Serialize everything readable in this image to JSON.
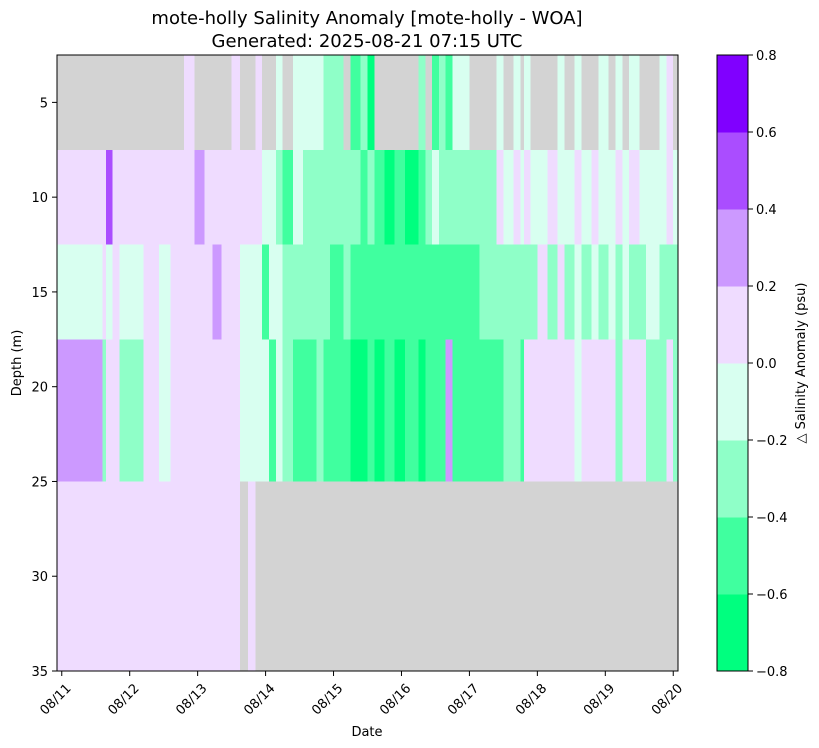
{
  "chart_data": {
    "type": "heatmap",
    "title_line1": "mote-holly Salinity Anomaly [mote-holly - WOA]",
    "title_line2": "Generated: 2025-08-21 07:15 UTC",
    "xlabel": "Date",
    "ylabel": "Depth (m)",
    "colorbar_label": "△ Salinity Anomaly (psu)",
    "x_tick_labels": [
      "08/11",
      "08/12",
      "08/13",
      "08/14",
      "08/15",
      "08/16",
      "08/17",
      "08/18",
      "08/19",
      "08/20"
    ],
    "x_range_days": [
      -0.07,
      9.07
    ],
    "y_ticks": [
      5,
      10,
      15,
      20,
      25,
      30,
      35
    ],
    "y_tick_labels": [
      "5",
      "10",
      "15",
      "20",
      "25",
      "30",
      "35"
    ],
    "ylim": [
      35,
      2.5
    ],
    "depth_bins": [
      [
        2.5,
        7.5
      ],
      [
        7.5,
        12.5
      ],
      [
        12.5,
        17.5
      ],
      [
        17.5,
        25
      ],
      [
        25,
        35
      ]
    ],
    "levels": [
      -0.8,
      -0.6,
      -0.4,
      -0.2,
      0.0,
      0.2,
      0.4,
      0.6,
      0.8
    ],
    "level_labels": [
      "−0.8",
      "−0.6",
      "−0.4",
      "−0.2",
      "0.0",
      "0.2",
      "0.4",
      "0.6",
      "0.8"
    ],
    "level_colors": [
      "#00ff7f",
      "#40ff9f",
      "#8fffc8",
      "#d8fff0",
      "#efdcff",
      "#cc99ff",
      "#aa4dff",
      "#8000ff"
    ],
    "nan_color": "#d3d3d3",
    "columns": [
      {
        "x0": -0.07,
        "x1": 0.6,
        "v": [
          null,
          0.1,
          -0.1,
          0.3,
          0.1
        ]
      },
      {
        "x0": 0.6,
        "x1": 0.65,
        "v": [
          null,
          0.1,
          0.1,
          -0.3,
          0.1
        ]
      },
      {
        "x0": 0.65,
        "x1": 0.75,
        "v": [
          null,
          0.5,
          -0.1,
          0.1,
          0.1
        ]
      },
      {
        "x0": 0.75,
        "x1": 0.85,
        "v": [
          null,
          0.1,
          0.1,
          0.1,
          0.1
        ]
      },
      {
        "x0": 0.85,
        "x1": 1.0,
        "v": [
          null,
          0.1,
          -0.1,
          -0.3,
          0.1
        ]
      },
      {
        "x0": 1.0,
        "x1": 1.2,
        "v": [
          null,
          0.1,
          -0.1,
          -0.3,
          0.1
        ]
      },
      {
        "x0": 1.2,
        "x1": 1.43,
        "v": [
          null,
          0.1,
          0.1,
          0.1,
          0.1
        ]
      },
      {
        "x0": 1.43,
        "x1": 1.6,
        "v": [
          null,
          0.1,
          -0.1,
          -0.1,
          0.1
        ]
      },
      {
        "x0": 1.6,
        "x1": 1.8,
        "v": [
          null,
          0.1,
          0.1,
          0.1,
          0.1
        ]
      },
      {
        "x0": 1.8,
        "x1": 1.95,
        "v": [
          0.1,
          0.1,
          0.1,
          0.1,
          0.1
        ]
      },
      {
        "x0": 1.95,
        "x1": 2.1,
        "v": [
          null,
          0.3,
          0.1,
          0.1,
          0.1
        ]
      },
      {
        "x0": 2.1,
        "x1": 2.22,
        "v": [
          null,
          0.1,
          0.1,
          0.1,
          0.1
        ]
      },
      {
        "x0": 2.22,
        "x1": 2.35,
        "v": [
          null,
          0.1,
          0.3,
          0.1,
          0.1
        ]
      },
      {
        "x0": 2.35,
        "x1": 2.5,
        "v": [
          null,
          0.1,
          0.1,
          0.1,
          0.1
        ]
      },
      {
        "x0": 2.5,
        "x1": 2.62,
        "v": [
          0.1,
          0.1,
          0.1,
          0.1,
          0.1
        ]
      },
      {
        "x0": 2.62,
        "x1": 2.74,
        "v": [
          null,
          0.1,
          -0.1,
          -0.1,
          null
        ]
      },
      {
        "x0": 2.74,
        "x1": 2.85,
        "v": [
          null,
          0.1,
          -0.1,
          -0.1,
          0.1
        ]
      },
      {
        "x0": 2.85,
        "x1": 2.95,
        "v": [
          0.1,
          0.1,
          -0.1,
          -0.1,
          null
        ]
      },
      {
        "x0": 2.95,
        "x1": 3.05,
        "v": [
          null,
          -0.1,
          -0.5,
          -0.1,
          null
        ]
      },
      {
        "x0": 3.05,
        "x1": 3.15,
        "v": [
          null,
          -0.1,
          -0.1,
          -0.5,
          null
        ]
      },
      {
        "x0": 3.15,
        "x1": 3.25,
        "v": [
          -0.1,
          -0.3,
          -0.1,
          -0.1,
          null
        ]
      },
      {
        "x0": 3.25,
        "x1": 3.4,
        "v": [
          null,
          -0.5,
          -0.3,
          -0.3,
          null
        ]
      },
      {
        "x0": 3.4,
        "x1": 3.55,
        "v": [
          -0.1,
          -0.1,
          -0.3,
          -0.5,
          null
        ]
      },
      {
        "x0": 3.55,
        "x1": 3.75,
        "v": [
          -0.1,
          -0.3,
          -0.3,
          -0.5,
          null
        ]
      },
      {
        "x0": 3.75,
        "x1": 3.85,
        "v": [
          -0.1,
          -0.3,
          -0.3,
          -0.3,
          null
        ]
      },
      {
        "x0": 3.85,
        "x1": 3.95,
        "v": [
          -0.3,
          -0.3,
          -0.3,
          -0.5,
          null
        ]
      },
      {
        "x0": 3.95,
        "x1": 4.05,
        "v": [
          -0.3,
          -0.3,
          -0.5,
          -0.5,
          null
        ]
      },
      {
        "x0": 4.05,
        "x1": 4.15,
        "v": [
          -0.3,
          -0.3,
          -0.5,
          -0.5,
          null
        ]
      },
      {
        "x0": 4.15,
        "x1": 4.25,
        "v": [
          null,
          -0.3,
          -0.3,
          -0.5,
          null
        ]
      },
      {
        "x0": 4.25,
        "x1": 4.4,
        "v": [
          -0.5,
          -0.3,
          -0.5,
          -0.7,
          null
        ]
      },
      {
        "x0": 4.4,
        "x1": 4.5,
        "v": [
          -0.3,
          -0.5,
          -0.5,
          -0.7,
          null
        ]
      },
      {
        "x0": 4.5,
        "x1": 4.6,
        "v": [
          -0.7,
          -0.3,
          -0.5,
          -0.5,
          null
        ]
      },
      {
        "x0": 4.6,
        "x1": 4.75,
        "v": [
          null,
          -0.5,
          -0.5,
          -0.7,
          null
        ]
      },
      {
        "x0": 4.75,
        "x1": 4.9,
        "v": [
          null,
          -0.7,
          -0.5,
          -0.5,
          null
        ]
      },
      {
        "x0": 4.9,
        "x1": 5.05,
        "v": [
          null,
          -0.5,
          -0.5,
          -0.7,
          null
        ]
      },
      {
        "x0": 5.05,
        "x1": 5.25,
        "v": [
          null,
          -0.7,
          -0.5,
          -0.5,
          null
        ]
      },
      {
        "x0": 5.25,
        "x1": 5.35,
        "v": [
          -0.3,
          -0.5,
          -0.5,
          -0.7,
          null
        ]
      },
      {
        "x0": 5.35,
        "x1": 5.45,
        "v": [
          null,
          -0.3,
          -0.5,
          -0.5,
          null
        ]
      },
      {
        "x0": 5.45,
        "x1": 5.55,
        "v": [
          -0.5,
          -0.1,
          -0.5,
          -0.5,
          null
        ]
      },
      {
        "x0": 5.55,
        "x1": 5.65,
        "v": [
          -0.3,
          -0.3,
          -0.5,
          -0.5,
          null
        ]
      },
      {
        "x0": 5.65,
        "x1": 5.75,
        "v": [
          -0.5,
          -0.3,
          -0.5,
          0.3,
          null
        ]
      },
      {
        "x0": 5.75,
        "x1": 6.0,
        "v": [
          -0.1,
          -0.3,
          -0.5,
          -0.5,
          null
        ]
      },
      {
        "x0": 6.0,
        "x1": 6.15,
        "v": [
          null,
          -0.3,
          -0.5,
          -0.5,
          null
        ]
      },
      {
        "x0": 6.15,
        "x1": 6.4,
        "v": [
          null,
          -0.3,
          -0.3,
          -0.5,
          null
        ]
      },
      {
        "x0": 6.4,
        "x1": 6.5,
        "v": [
          -0.1,
          0.1,
          -0.3,
          -0.5,
          null
        ]
      },
      {
        "x0": 6.5,
        "x1": 6.65,
        "v": [
          null,
          -0.1,
          -0.3,
          -0.3,
          null
        ]
      },
      {
        "x0": 6.65,
        "x1": 6.75,
        "v": [
          -0.1,
          0.1,
          -0.3,
          -0.3,
          null
        ]
      },
      {
        "x0": 6.75,
        "x1": 6.8,
        "v": [
          null,
          -0.1,
          -0.3,
          -0.5,
          null
        ]
      },
      {
        "x0": 6.8,
        "x1": 6.9,
        "v": [
          -0.1,
          0.1,
          -0.3,
          0.1,
          null
        ]
      },
      {
        "x0": 6.9,
        "x1": 7.0,
        "v": [
          null,
          -0.1,
          -0.3,
          0.1,
          null
        ]
      },
      {
        "x0": 7.0,
        "x1": 7.15,
        "v": [
          null,
          -0.1,
          0.1,
          0.1,
          null
        ]
      },
      {
        "x0": 7.15,
        "x1": 7.3,
        "v": [
          null,
          0.1,
          -0.3,
          0.1,
          null
        ]
      },
      {
        "x0": 7.3,
        "x1": 7.4,
        "v": [
          -0.1,
          -0.1,
          0.1,
          0.1,
          null
        ]
      },
      {
        "x0": 7.4,
        "x1": 7.55,
        "v": [
          null,
          -0.1,
          -0.3,
          0.1,
          null
        ]
      },
      {
        "x0": 7.55,
        "x1": 7.65,
        "v": [
          -0.1,
          0.1,
          -0.1,
          -0.1,
          null
        ]
      },
      {
        "x0": 7.65,
        "x1": 7.8,
        "v": [
          null,
          -0.1,
          -0.3,
          0.1,
          null
        ]
      },
      {
        "x0": 7.8,
        "x1": 7.9,
        "v": [
          null,
          0.1,
          -0.1,
          0.1,
          null
        ]
      },
      {
        "x0": 7.9,
        "x1": 8.05,
        "v": [
          -0.1,
          -0.1,
          -0.3,
          0.1,
          null
        ]
      },
      {
        "x0": 8.05,
        "x1": 8.15,
        "v": [
          null,
          -0.1,
          -0.1,
          0.1,
          null
        ]
      },
      {
        "x0": 8.15,
        "x1": 8.25,
        "v": [
          -0.1,
          0.1,
          -0.3,
          -0.3,
          null
        ]
      },
      {
        "x0": 8.25,
        "x1": 8.35,
        "v": [
          null,
          -0.1,
          -0.1,
          0.1,
          null
        ]
      },
      {
        "x0": 8.35,
        "x1": 8.5,
        "v": [
          -0.1,
          0.1,
          -0.3,
          0.1,
          null
        ]
      },
      {
        "x0": 8.5,
        "x1": 8.6,
        "v": [
          null,
          -0.1,
          -0.3,
          0.1,
          null
        ]
      },
      {
        "x0": 8.6,
        "x1": 8.8,
        "v": [
          null,
          -0.1,
          -0.1,
          -0.3,
          null
        ]
      },
      {
        "x0": 8.8,
        "x1": 8.9,
        "v": [
          -0.1,
          -0.1,
          -0.3,
          -0.3,
          null
        ]
      },
      {
        "x0": 8.9,
        "x1": 9.0,
        "v": [
          0.1,
          0.1,
          -0.3,
          0.1,
          null
        ]
      },
      {
        "x0": 9.0,
        "x1": 9.07,
        "v": [
          null,
          -0.1,
          -0.3,
          -0.3,
          null
        ]
      }
    ]
  }
}
